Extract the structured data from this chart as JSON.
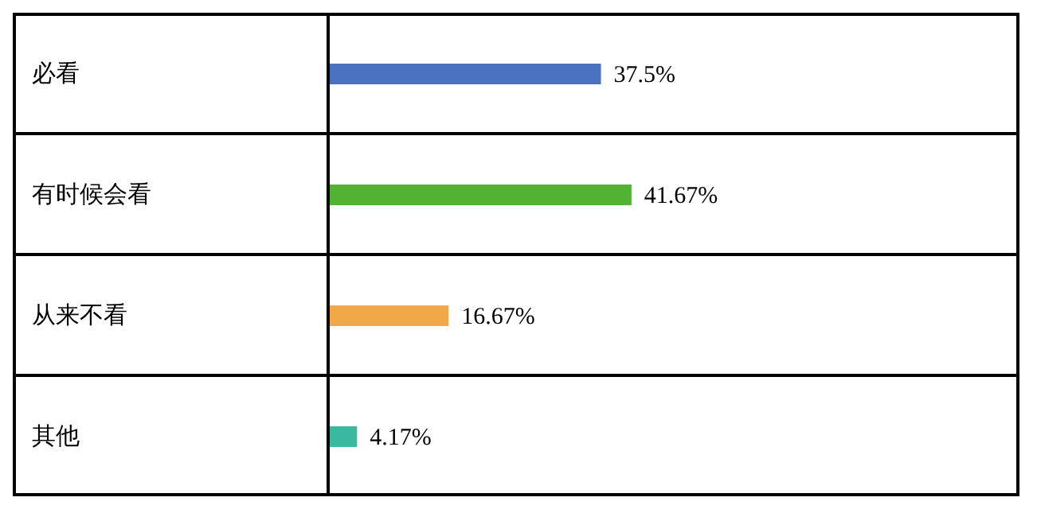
{
  "chart_data": {
    "type": "bar",
    "orientation": "horizontal",
    "categories": [
      "必看",
      "有时候会看",
      "从来不看",
      "其他"
    ],
    "values": [
      37.5,
      41.67,
      16.67,
      4.17
    ],
    "colors": [
      "#4a72c0",
      "#52b234",
      "#f0a848",
      "#3ab8a0"
    ],
    "value_labels": [
      "37.5%",
      "41.67%",
      "16.67%",
      "4.17%"
    ]
  }
}
